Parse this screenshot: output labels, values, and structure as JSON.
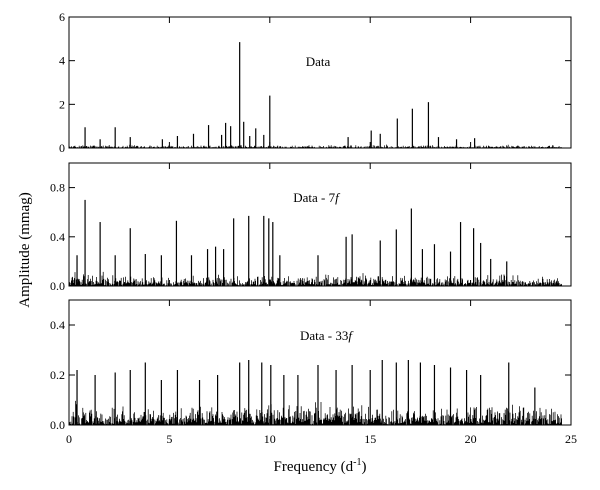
{
  "chart_data": {
    "type": "line",
    "xlabel": "Frequency (d",
    "xlabel_sup": "-1",
    "xlabel_close": ")",
    "ylabel": "Amplitude (mmag)",
    "xlim": [
      0,
      25
    ],
    "x_ticks": [
      0,
      5,
      10,
      15,
      20,
      25
    ],
    "grid": false,
    "panels": [
      {
        "label": "Data",
        "label_italic": "",
        "ylim": [
          0,
          6
        ],
        "y_ticks": [
          0,
          2,
          4,
          6
        ],
        "y_tick_labels": [
          "0",
          "2",
          "4",
          "6"
        ],
        "noise_level": 0.18,
        "peaks": [
          {
            "x": 0.8,
            "y": 0.95
          },
          {
            "x": 1.55,
            "y": 0.4
          },
          {
            "x": 2.3,
            "y": 0.95
          },
          {
            "x": 3.05,
            "y": 0.5
          },
          {
            "x": 4.65,
            "y": 0.4
          },
          {
            "x": 5.4,
            "y": 0.55
          },
          {
            "x": 6.2,
            "y": 0.65
          },
          {
            "x": 6.95,
            "y": 1.05
          },
          {
            "x": 7.6,
            "y": 0.6
          },
          {
            "x": 7.8,
            "y": 1.15
          },
          {
            "x": 8.05,
            "y": 1.0
          },
          {
            "x": 8.5,
            "y": 4.85
          },
          {
            "x": 8.7,
            "y": 1.2
          },
          {
            "x": 9.0,
            "y": 0.55
          },
          {
            "x": 9.3,
            "y": 0.9
          },
          {
            "x": 9.7,
            "y": 0.6
          },
          {
            "x": 10.0,
            "y": 2.4
          },
          {
            "x": 13.9,
            "y": 0.5
          },
          {
            "x": 15.05,
            "y": 0.8
          },
          {
            "x": 15.5,
            "y": 0.65
          },
          {
            "x": 16.35,
            "y": 1.35
          },
          {
            "x": 17.1,
            "y": 1.8
          },
          {
            "x": 17.9,
            "y": 2.1
          },
          {
            "x": 18.4,
            "y": 0.5
          },
          {
            "x": 19.3,
            "y": 0.4
          },
          {
            "x": 20.2,
            "y": 0.45
          }
        ]
      },
      {
        "label": "Data - 7",
        "label_italic": "f",
        "ylim": [
          0,
          1.0
        ],
        "y_ticks": [
          0,
          0.4,
          0.8
        ],
        "y_tick_labels": [
          "0.0",
          "0.4",
          "0.8"
        ],
        "noise_level": 0.12,
        "peaks": [
          {
            "x": 0.4,
            "y": 0.25
          },
          {
            "x": 0.8,
            "y": 0.7
          },
          {
            "x": 1.55,
            "y": 0.52
          },
          {
            "x": 2.3,
            "y": 0.25
          },
          {
            "x": 3.05,
            "y": 0.47
          },
          {
            "x": 3.8,
            "y": 0.26
          },
          {
            "x": 4.6,
            "y": 0.25
          },
          {
            "x": 5.35,
            "y": 0.53
          },
          {
            "x": 6.1,
            "y": 0.25
          },
          {
            "x": 6.9,
            "y": 0.3
          },
          {
            "x": 7.3,
            "y": 0.32
          },
          {
            "x": 7.7,
            "y": 0.3
          },
          {
            "x": 8.2,
            "y": 0.55
          },
          {
            "x": 8.95,
            "y": 0.57
          },
          {
            "x": 9.7,
            "y": 0.57
          },
          {
            "x": 9.95,
            "y": 0.55
          },
          {
            "x": 10.15,
            "y": 0.52
          },
          {
            "x": 10.5,
            "y": 0.25
          },
          {
            "x": 12.4,
            "y": 0.25
          },
          {
            "x": 13.8,
            "y": 0.4
          },
          {
            "x": 14.1,
            "y": 0.42
          },
          {
            "x": 15.5,
            "y": 0.37
          },
          {
            "x": 16.3,
            "y": 0.46
          },
          {
            "x": 17.05,
            "y": 0.63
          },
          {
            "x": 17.6,
            "y": 0.3
          },
          {
            "x": 18.2,
            "y": 0.34
          },
          {
            "x": 19.0,
            "y": 0.28
          },
          {
            "x": 19.5,
            "y": 0.52
          },
          {
            "x": 20.15,
            "y": 0.47
          },
          {
            "x": 20.5,
            "y": 0.35
          },
          {
            "x": 21.0,
            "y": 0.22
          },
          {
            "x": 21.8,
            "y": 0.2
          }
        ]
      },
      {
        "label": "Data - 33",
        "label_italic": "f",
        "ylim": [
          0,
          0.5
        ],
        "y_ticks": [
          0,
          0.2,
          0.4
        ],
        "y_tick_labels": [
          "0.0",
          "0.2",
          "0.4"
        ],
        "noise_level": 0.11,
        "peaks": [
          {
            "x": 0.4,
            "y": 0.22
          },
          {
            "x": 1.3,
            "y": 0.2
          },
          {
            "x": 2.3,
            "y": 0.21
          },
          {
            "x": 3.05,
            "y": 0.22
          },
          {
            "x": 3.8,
            "y": 0.25
          },
          {
            "x": 4.6,
            "y": 0.18
          },
          {
            "x": 5.4,
            "y": 0.22
          },
          {
            "x": 6.5,
            "y": 0.18
          },
          {
            "x": 7.4,
            "y": 0.2
          },
          {
            "x": 8.5,
            "y": 0.25
          },
          {
            "x": 8.95,
            "y": 0.26
          },
          {
            "x": 9.6,
            "y": 0.25
          },
          {
            "x": 10.05,
            "y": 0.24
          },
          {
            "x": 10.7,
            "y": 0.2
          },
          {
            "x": 11.4,
            "y": 0.2
          },
          {
            "x": 12.4,
            "y": 0.24
          },
          {
            "x": 13.3,
            "y": 0.22
          },
          {
            "x": 14.1,
            "y": 0.24
          },
          {
            "x": 15.0,
            "y": 0.22
          },
          {
            "x": 15.6,
            "y": 0.26
          },
          {
            "x": 16.3,
            "y": 0.25
          },
          {
            "x": 16.9,
            "y": 0.26
          },
          {
            "x": 17.5,
            "y": 0.25
          },
          {
            "x": 18.2,
            "y": 0.24
          },
          {
            "x": 19.0,
            "y": 0.23
          },
          {
            "x": 19.8,
            "y": 0.22
          },
          {
            "x": 20.5,
            "y": 0.2
          },
          {
            "x": 21.9,
            "y": 0.25
          },
          {
            "x": 23.2,
            "y": 0.15
          }
        ]
      }
    ]
  }
}
